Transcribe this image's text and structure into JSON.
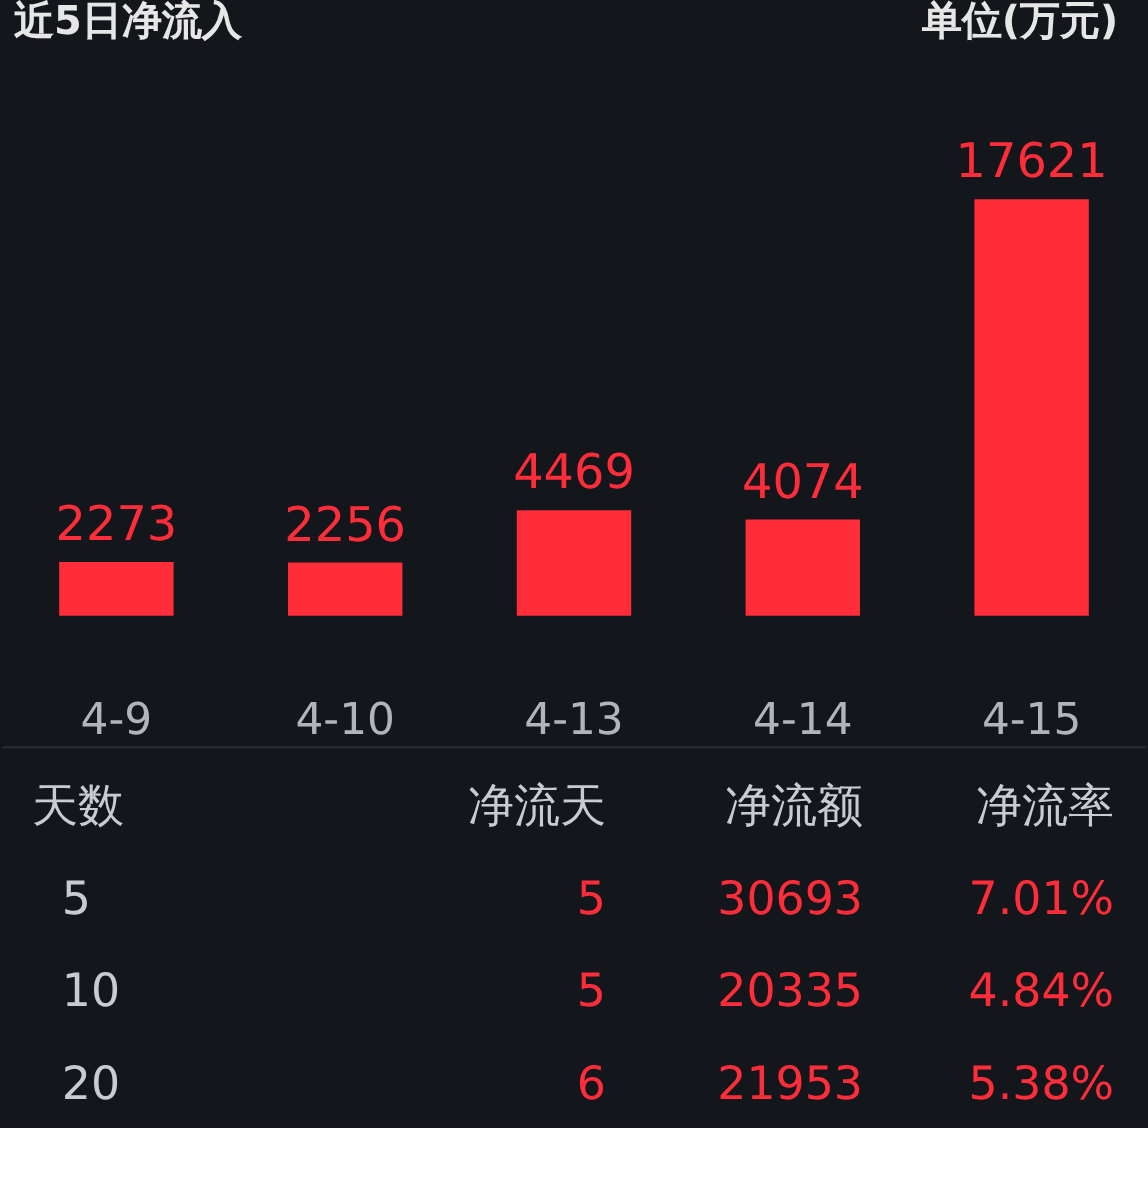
{
  "chart_data": [
    {
      "type": "bar",
      "title": "近5日净流入",
      "annotations": [
        "单位(万元)"
      ],
      "categories": [
        "4-9",
        "4-10",
        "4-13",
        "4-14",
        "4-15"
      ],
      "values": [
        2273,
        2256,
        4469,
        4074,
        17621
      ],
      "color": "#ff2d3a",
      "data_labels": true,
      "tick_labels": "x",
      "grid": false
    },
    {
      "type": "other",
      "annotations": [
        "天数",
        "净流天",
        "净流额",
        "净流率",
        "5",
        "5",
        "30693",
        "7.01%",
        "10",
        "5",
        "20335",
        "4.84%",
        "20",
        "6",
        "21953",
        "5.38%"
      ]
    }
  ]
}
